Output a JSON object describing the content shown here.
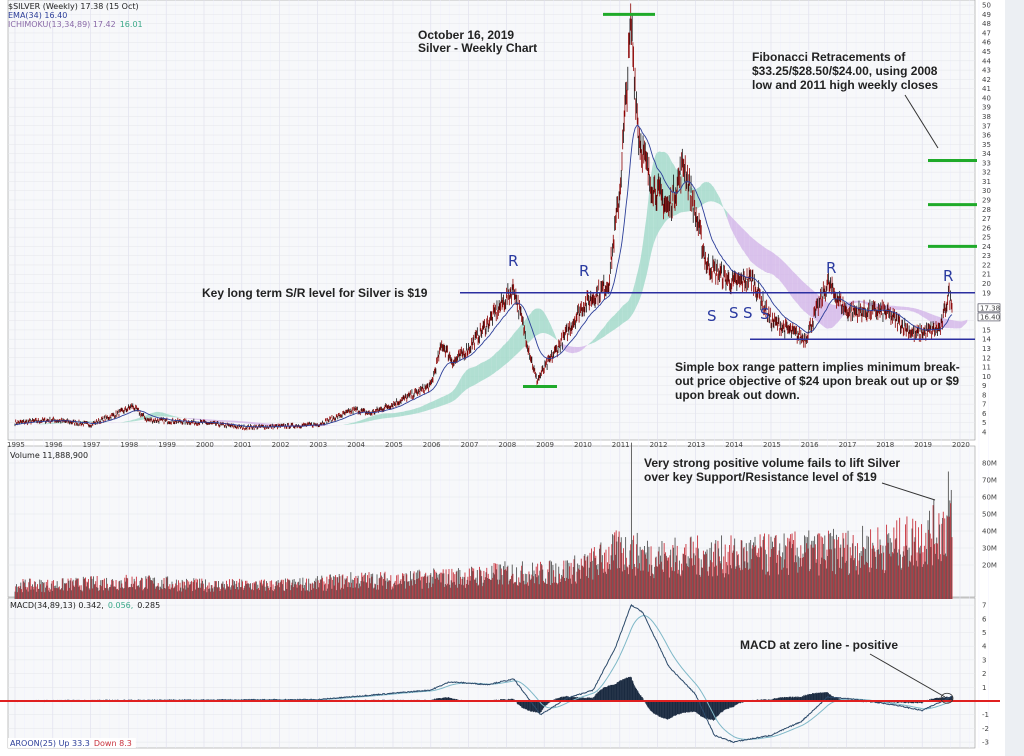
{
  "legends": {
    "price": "$SILVER (Weekly) 17.38 (15 Oct)",
    "ema": "EMA(34) 16.40",
    "ichimoku": "ICHIMOKU(13,34,89) 17.42",
    "ichimoku_b": "16.01",
    "volume": "Volume 11,888,900",
    "macd": "MACD(34,89,13) 0.342,",
    "macd_signal": "0.056,",
    "macd_hist": "0.285",
    "aroon": "AROON(25) Up 33.3",
    "aroon_down": "Down 8.3"
  },
  "annotations": {
    "title_date": "October 16, 2019",
    "title_chart": "Silver - Weekly Chart",
    "fib_1": "Fibonacci Retracements of",
    "fib_2": "$33.25/$28.50/$24.00, using 2008",
    "fib_3": "low and 2011 high weekly closes",
    "sr": "Key long term S/R level for Silver is $19",
    "box_1": "Simple box range pattern implies minimum break-",
    "box_2": "out price objective of $24 upon break out up or $9",
    "box_3": "upon break out down.",
    "vol_1": "Very strong positive volume fails to lift Silver",
    "vol_2": "over key Support/Resistance level of $19",
    "macd_note": "MACD at zero line - positive",
    "r_label": "R",
    "s_label": "S"
  },
  "colors": {
    "price": "#8b0000",
    "ema": "#2c3e99",
    "cloud_up": "#9fd8c8",
    "cloud_down": "#d2b4e8",
    "fib": "#1faa2a",
    "sr_line": "#2b2fa0",
    "macd": "#2c4a6a",
    "macd_signal": "#7fb8c8",
    "zero_line": "#e02020",
    "vol_up": "#555555",
    "vol_down": "#c8323c"
  },
  "chart_data": [
    {
      "type": "line",
      "name": "price",
      "x_ticks": [
        "1995",
        "1996",
        "1997",
        "1998",
        "1999",
        "2000",
        "2001",
        "2002",
        "2003",
        "2004",
        "2005",
        "2006",
        "2007",
        "2008",
        "2009",
        "2010",
        "2011",
        "2012",
        "2013",
        "2014",
        "2015",
        "2016",
        "2017",
        "2018",
        "2019",
        "2020"
      ],
      "y_ticks": [
        4,
        5,
        6,
        7,
        8,
        9,
        10,
        11,
        12,
        13,
        14,
        15,
        16,
        17,
        18,
        19,
        20,
        21,
        22,
        23,
        24,
        25,
        26,
        27,
        28,
        29,
        30,
        31,
        32,
        33,
        34,
        35,
        36,
        37,
        38,
        39,
        40,
        41,
        42,
        43,
        44,
        45,
        46,
        47,
        48,
        49,
        50
      ],
      "ylim": [
        4,
        50
      ],
      "xlim": [
        1995,
        2020.3
      ],
      "x": [
        1995.0,
        1996.0,
        1997.0,
        1997.9,
        1998.1,
        1998.5,
        1999.0,
        2000.0,
        2001.0,
        2002.0,
        2003.0,
        2004.0,
        2004.4,
        2005.0,
        2006.0,
        2006.3,
        2006.6,
        2007.0,
        2008.2,
        2008.8,
        2009.5,
        2010.0,
        2010.7,
        2011.0,
        2011.3,
        2011.5,
        2011.8,
        2012.3,
        2012.7,
        2013.3,
        2014.0,
        2014.5,
        2015.0,
        2015.9,
        2016.5,
        2017.0,
        2018.0,
        2018.8,
        2019.5,
        2019.7,
        2019.79
      ],
      "close": [
        5.0,
        5.3,
        4.8,
        6.3,
        6.8,
        5.3,
        5.2,
        5.0,
        4.5,
        4.6,
        4.8,
        6.4,
        6.0,
        7.0,
        9.0,
        13.5,
        11.5,
        13.0,
        19.5,
        9.5,
        14.0,
        17.5,
        20.0,
        30.0,
        48.0,
        36.0,
        31.0,
        28.0,
        33.0,
        22.0,
        20.0,
        20.5,
        16.0,
        14.0,
        20.0,
        17.0,
        17.0,
        14.5,
        15.2,
        19.0,
        17.38
      ],
      "ema_last": 16.4,
      "fib_levels": [
        33.25,
        28.5,
        24.0
      ],
      "sr_levels": [
        19,
        14
      ],
      "grid": true
    },
    {
      "type": "bar",
      "name": "Volume",
      "y_ticks": [
        "20M",
        "30M",
        "40M",
        "50M",
        "60M",
        "70M",
        "80M"
      ],
      "ylim": [
        0,
        95
      ],
      "unit": "M",
      "x": [
        1995,
        1996,
        1997,
        1998,
        1999,
        2000,
        2001,
        2002,
        2003,
        2004,
        2005,
        2006,
        2007,
        2008,
        2009,
        2010,
        2011,
        2012,
        2013,
        2014,
        2015,
        2016,
        2017,
        2018,
        2019,
        2019.8
      ],
      "avg_volume": [
        8,
        8,
        9,
        10,
        9,
        8,
        8,
        8,
        9,
        11,
        11,
        12,
        13,
        15,
        15,
        18,
        28,
        24,
        25,
        25,
        26,
        27,
        28,
        30,
        35,
        45
      ],
      "peak_values": [
        {
          "x": 2011.3,
          "v": 92
        },
        {
          "x": 2019.7,
          "v": 75
        }
      ]
    },
    {
      "type": "line",
      "name": "MACD",
      "y_ticks": [
        -3,
        -2,
        -1,
        1,
        2,
        3,
        4,
        5,
        6,
        7
      ],
      "ylim": [
        -3.5,
        7.5
      ],
      "x": [
        1995,
        2003,
        2006.0,
        2006.5,
        2007.5,
        2008.2,
        2008.9,
        2009.6,
        2010.3,
        2010.9,
        2011.3,
        2011.6,
        2012.3,
        2013.0,
        2013.5,
        2014.0,
        2015.0,
        2015.8,
        2016.5,
        2017.3,
        2018.3,
        2019.0,
        2019.79
      ],
      "macd": [
        0,
        0.1,
        0.8,
        1.4,
        1.2,
        1.6,
        -1.0,
        0.2,
        0.8,
        4.0,
        7.0,
        6.5,
        2.5,
        0.5,
        -2.5,
        -3.0,
        -2.5,
        -1.5,
        0.3,
        0.1,
        -0.3,
        -0.7,
        0.342
      ],
      "signal_last": 0.056,
      "hist_last": 0.285
    }
  ]
}
